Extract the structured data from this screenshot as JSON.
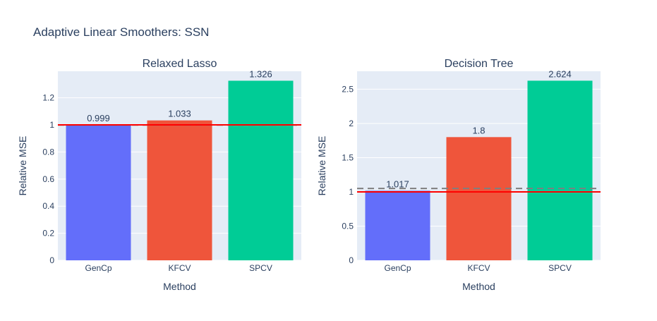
{
  "title": "Adaptive Linear Smoothers: SSN",
  "colors": {
    "plot_bg": "#E5ECF6",
    "grid": "#FFFFFF",
    "text": "#2A3F5F",
    "reference_line": "#FF0000",
    "dashed_line": "#7F7F7F",
    "bars": [
      "#636EFA",
      "#EF553B",
      "#00CC96"
    ]
  },
  "chart_data": [
    {
      "type": "bar",
      "title": "Relaxed Lasso",
      "xlabel": "Method",
      "ylabel": "Relative MSE",
      "categories": [
        "GenCp",
        "KFCV",
        "SPCV"
      ],
      "values": [
        0.999,
        1.033,
        1.326
      ],
      "value_labels": [
        "0.999",
        "1.033",
        "1.326"
      ],
      "ylim": [
        0,
        1.396
      ],
      "yticks": [
        0,
        0.2,
        0.4,
        0.6,
        0.8,
        1,
        1.2
      ],
      "ytick_labels": [
        "0",
        "0.2",
        "0.4",
        "0.6",
        "0.8",
        "1",
        "1.2"
      ],
      "reference_line": 1,
      "dashed_line": 0.999
    },
    {
      "type": "bar",
      "title": "Decision Tree",
      "xlabel": "Method",
      "ylabel": "Relative MSE",
      "categories": [
        "GenCp",
        "KFCV",
        "SPCV"
      ],
      "values": [
        1.017,
        1.8,
        2.624
      ],
      "value_labels": [
        "1.017",
        "1.8",
        "2.624"
      ],
      "ylim": [
        0,
        2.762
      ],
      "yticks": [
        0,
        0.5,
        1,
        1.5,
        2,
        2.5
      ],
      "ytick_labels": [
        "0",
        "0.5",
        "1",
        "1.5",
        "2",
        "2.5"
      ],
      "reference_line": 1,
      "dashed_line": 1.05
    }
  ]
}
